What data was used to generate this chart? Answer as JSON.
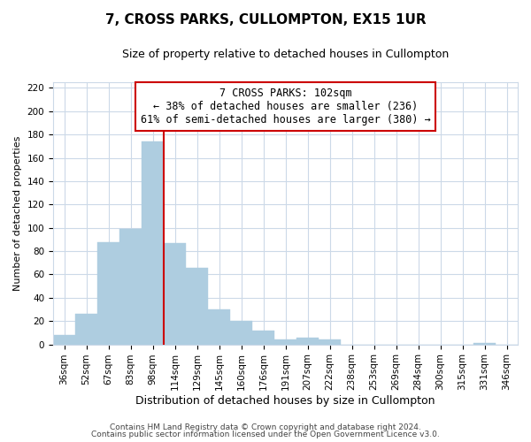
{
  "title": "7, CROSS PARKS, CULLOMPTON, EX15 1UR",
  "subtitle": "Size of property relative to detached houses in Cullompton",
  "xlabel": "Distribution of detached houses by size in Cullompton",
  "ylabel": "Number of detached properties",
  "bar_color": "#aecde0",
  "bar_edge_color": "#aecde0",
  "marker_line_color": "#cc0000",
  "categories": [
    "36sqm",
    "52sqm",
    "67sqm",
    "83sqm",
    "98sqm",
    "114sqm",
    "129sqm",
    "145sqm",
    "160sqm",
    "176sqm",
    "191sqm",
    "207sqm",
    "222sqm",
    "238sqm",
    "253sqm",
    "269sqm",
    "284sqm",
    "300sqm",
    "315sqm",
    "331sqm",
    "346sqm"
  ],
  "values": [
    8,
    26,
    88,
    99,
    174,
    87,
    66,
    30,
    20,
    12,
    4,
    6,
    4,
    0,
    0,
    0,
    0,
    0,
    0,
    1,
    0
  ],
  "marker_index": 5,
  "annotation_line1": "7 CROSS PARKS: 102sqm",
  "annotation_line2": "← 38% of detached houses are smaller (236)",
  "annotation_line3": "61% of semi-detached houses are larger (380) →",
  "ylim": [
    0,
    225
  ],
  "yticks": [
    0,
    20,
    40,
    60,
    80,
    100,
    120,
    140,
    160,
    180,
    200,
    220
  ],
  "footer1": "Contains HM Land Registry data © Crown copyright and database right 2024.",
  "footer2": "Contains public sector information licensed under the Open Government Licence v3.0.",
  "bg_color": "#ffffff",
  "grid_color": "#ccd9e8",
  "title_fontsize": 11,
  "subtitle_fontsize": 9,
  "annotation_fontsize": 8.5,
  "tick_fontsize": 7.5,
  "ylabel_fontsize": 8,
  "xlabel_fontsize": 9
}
